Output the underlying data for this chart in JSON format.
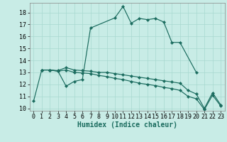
{
  "title": "",
  "xlabel": "Humidex (Indice chaleur)",
  "xlim": [
    -0.5,
    23.5
  ],
  "ylim": [
    9.8,
    18.8
  ],
  "yticks": [
    10,
    11,
    12,
    13,
    14,
    15,
    16,
    17,
    18
  ],
  "xticks": [
    0,
    1,
    2,
    3,
    4,
    5,
    6,
    7,
    8,
    9,
    10,
    11,
    12,
    13,
    14,
    15,
    16,
    17,
    18,
    19,
    20,
    21,
    22,
    23
  ],
  "bg_color": "#c8ece6",
  "line_color": "#1a6b5e",
  "grid_color": "#a8d8d0",
  "series1_x": [
    0,
    1,
    2,
    3,
    4,
    5,
    6,
    7,
    10,
    11,
    12,
    13,
    14,
    15,
    16,
    17,
    18,
    20
  ],
  "series1_y": [
    10.6,
    13.2,
    13.2,
    13.1,
    11.85,
    12.25,
    12.4,
    16.7,
    17.55,
    18.5,
    17.1,
    17.5,
    17.4,
    17.5,
    17.2,
    15.5,
    15.5,
    13.0
  ],
  "series2_x": [
    1,
    2,
    3,
    4,
    5,
    6,
    7,
    8,
    9,
    10,
    11,
    12,
    13,
    14,
    15,
    16,
    17,
    18,
    19,
    20,
    21,
    22,
    23
  ],
  "series2_y": [
    13.2,
    13.2,
    13.15,
    13.4,
    13.2,
    13.15,
    13.1,
    13.0,
    13.0,
    12.9,
    12.8,
    12.7,
    12.6,
    12.5,
    12.4,
    12.3,
    12.2,
    12.1,
    11.5,
    11.2,
    10.0,
    11.3,
    10.3
  ],
  "series3_x": [
    1,
    2,
    3,
    4,
    5,
    6,
    7,
    8,
    9,
    10,
    11,
    12,
    13,
    14,
    15,
    16,
    17,
    18,
    19,
    20,
    21,
    22,
    23
  ],
  "series3_y": [
    13.2,
    13.2,
    13.1,
    13.2,
    13.0,
    12.95,
    12.9,
    12.75,
    12.65,
    12.5,
    12.4,
    12.25,
    12.1,
    12.0,
    11.9,
    11.75,
    11.65,
    11.5,
    11.0,
    10.8,
    9.9,
    11.1,
    10.2
  ],
  "tick_fontsize": 6.0,
  "xlabel_fontsize": 7.0,
  "marker_size": 2.2,
  "line_width": 0.85
}
